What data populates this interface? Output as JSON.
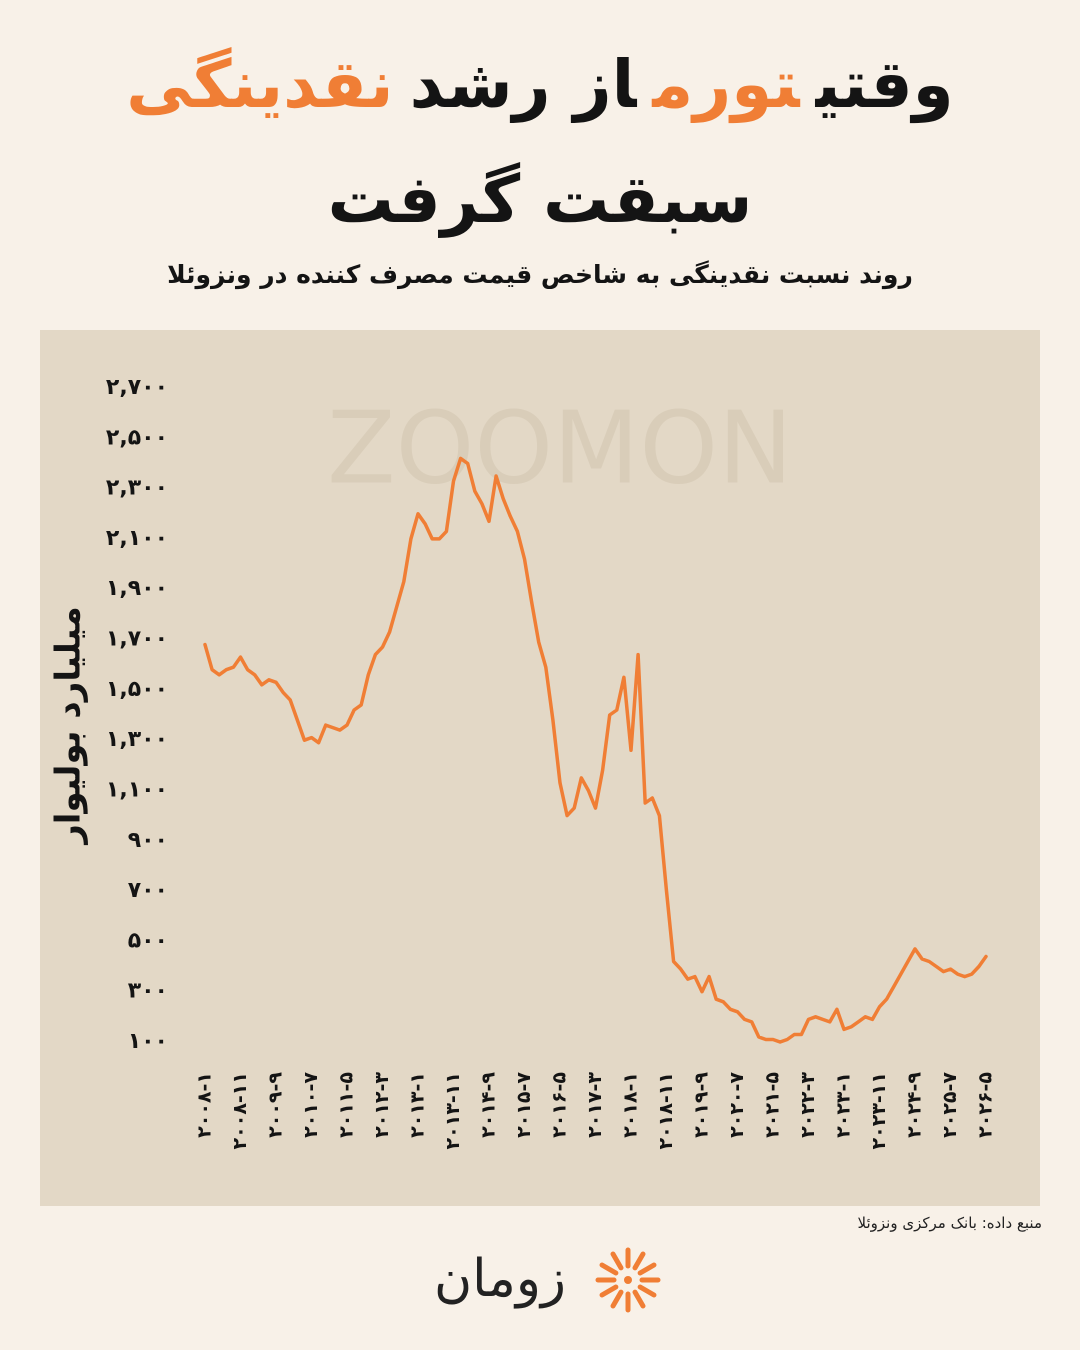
{
  "chart_data": {
    "type": "line",
    "title_segments": [
      {
        "text": "وقتی",
        "color": "#141414"
      },
      {
        "text": "تورم",
        "color": "#f07e35"
      },
      {
        "text": "از رشد",
        "color": "#141414"
      },
      {
        "text": "نقدینگی",
        "color": "#f07e35"
      }
    ],
    "title_line2": "سبقت گرفت",
    "subtitle": "روند نسبت نقدینگی به شاخص قیمت مصرف کننده در ونزوئلا",
    "y_label": "میلیارد بولیوار",
    "source": "منبع داده: بانک مرکزی ونزوئلا",
    "watermark": "ZOOMON",
    "logo": "زومان",
    "color": "#f07e35",
    "categories": [
      "۲۰۰۸-۱",
      null,
      null,
      null,
      null,
      "۲۰۰۸-۱۱",
      null,
      null,
      null,
      null,
      "۲۰۰۹-۹",
      null,
      null,
      null,
      null,
      "۲۰۱۰-۷",
      null,
      null,
      null,
      null,
      "۲۰۱۱-۵",
      null,
      null,
      null,
      null,
      "۲۰۱۲-۳",
      null,
      null,
      null,
      null,
      "۲۰۱۳-۱",
      null,
      null,
      null,
      null,
      "۲۰۱۳-۱۱",
      null,
      null,
      null,
      null,
      "۲۰۱۴-۹",
      null,
      null,
      null,
      null,
      "۲۰۱۵-۷",
      null,
      null,
      null,
      null,
      "۲۰۱۶-۵",
      null,
      null,
      null,
      null,
      "۲۰۱۷-۳",
      null,
      null,
      null,
      null,
      "۲۰۱۸-۱",
      null,
      null,
      null,
      null,
      "۲۰۱۸-۱۱",
      null,
      null,
      null,
      null,
      "۲۰۱۹-۹",
      null,
      null,
      null,
      null,
      "۲۰۲۰-۷",
      null,
      null,
      null,
      null,
      "۲۰۲۱-۵",
      null,
      null,
      null,
      null,
      "۲۰۲۲-۳",
      null,
      null,
      null,
      null,
      "۲۰۲۳-۱",
      null,
      null,
      null,
      null,
      "۲۰۲۳-۱۱",
      null,
      null,
      null,
      null,
      "۲۰۲۴-۹",
      null,
      null,
      null,
      null,
      "۲۰۲۵-۷",
      null,
      null,
      null,
      null,
      "۲۰۲۶-۵"
    ],
    "values": [
      1680,
      1580,
      1560,
      1580,
      1590,
      1630,
      1580,
      1560,
      1520,
      1540,
      1530,
      1490,
      1460,
      1380,
      1300,
      1310,
      1290,
      1360,
      1350,
      1340,
      1360,
      1420,
      1440,
      1560,
      1640,
      1670,
      1730,
      1830,
      1930,
      2100,
      2200,
      2160,
      2100,
      2100,
      2130,
      2330,
      2420,
      2400,
      2290,
      2240,
      2170,
      2350,
      2260,
      2190,
      2130,
      2020,
      1850,
      1690,
      1590,
      1380,
      1130,
      1000,
      1030,
      1150,
      1100,
      1030,
      1180,
      1400,
      1420,
      1550,
      1260,
      1640,
      1050,
      1070,
      1000,
      700,
      420,
      390,
      350,
      360,
      300,
      360,
      270,
      260,
      230,
      220,
      190,
      180,
      120,
      110,
      110,
      100,
      110,
      130,
      130,
      190,
      200,
      190,
      180,
      230,
      150,
      160,
      180,
      200,
      190,
      240,
      270,
      320,
      370,
      420,
      470,
      430,
      420,
      400,
      380,
      390,
      370,
      360,
      370,
      400,
      440
    ],
    "ylim": [
      100,
      2700
    ],
    "yticks": [
      {
        "value": 100,
        "label": "۱۰۰"
      },
      {
        "value": 300,
        "label": "۳۰۰"
      },
      {
        "value": 500,
        "label": "۵۰۰"
      },
      {
        "value": 700,
        "label": "۷۰۰"
      },
      {
        "value": 900,
        "label": "۹۰۰"
      },
      {
        "value": 1100,
        "label": "۱,۱۰۰"
      },
      {
        "value": 1300,
        "label": "۱,۳۰۰"
      },
      {
        "value": 1500,
        "label": "۱,۵۰۰"
      },
      {
        "value": 1700,
        "label": "۱,۷۰۰"
      },
      {
        "value": 1900,
        "label": "۱,۹۰۰"
      },
      {
        "value": 2100,
        "label": "۲,۱۰۰"
      },
      {
        "value": 2300,
        "label": "۲,۳۰۰"
      },
      {
        "value": 2500,
        "label": "۲,۵۰۰"
      },
      {
        "value": 2700,
        "label": "۲,۷۰۰"
      }
    ],
    "grid": false
  }
}
